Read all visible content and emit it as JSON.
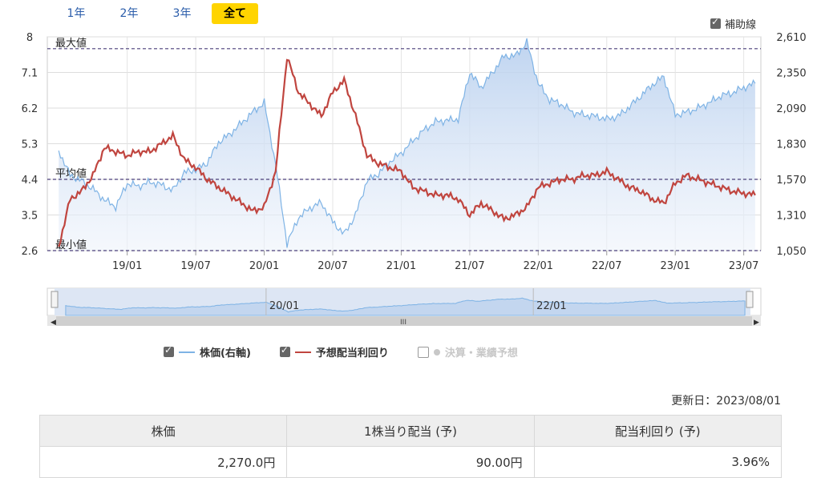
{
  "tabs": [
    {
      "label": "1年",
      "active": false
    },
    {
      "label": "2年",
      "active": false
    },
    {
      "label": "3年",
      "active": false
    },
    {
      "label": "全て",
      "active": true
    }
  ],
  "aux_lines_label": "補助線",
  "chart_data": {
    "type": "line",
    "left_axis": {
      "ticks": [
        "8",
        "7.1",
        "6.2",
        "5.3",
        "4.4",
        "3.5",
        "2.6"
      ],
      "range": [
        2.6,
        8.0
      ]
    },
    "right_axis": {
      "ticks": [
        "2,610",
        "2,350",
        "2,090",
        "1,830",
        "1,570",
        "1,310",
        "1,050"
      ],
      "range": [
        1050,
        2610
      ]
    },
    "x_ticks": [
      "19/01",
      "19/07",
      "20/01",
      "20/07",
      "21/01",
      "21/07",
      "22/01",
      "22/07",
      "23/01",
      "23/07"
    ],
    "reference_lines": [
      {
        "label": "最大値",
        "value": 7.7
      },
      {
        "label": "平均値",
        "value": 4.4
      },
      {
        "label": "最小値",
        "value": 2.6
      }
    ],
    "series": [
      {
        "name": "株価(右軸)",
        "axis": "right",
        "color": "#7eb3e5",
        "x": [
          "18/07",
          "18/08",
          "18/09",
          "18/10",
          "18/11",
          "18/12",
          "19/01",
          "19/02",
          "19/03",
          "19/04",
          "19/05",
          "19/06",
          "19/07",
          "19/08",
          "19/09",
          "19/10",
          "19/11",
          "19/12",
          "20/01",
          "20/02",
          "20/03",
          "20/04",
          "20/05",
          "20/06",
          "20/07",
          "20/08",
          "20/09",
          "20/10",
          "20/11",
          "20/12",
          "21/01",
          "21/02",
          "21/03",
          "21/04",
          "21/05",
          "21/06",
          "21/07",
          "21/08",
          "21/09",
          "21/10",
          "21/11",
          "21/12",
          "22/01",
          "22/02",
          "22/03",
          "22/04",
          "22/05",
          "22/06",
          "22/07",
          "22/08",
          "22/09",
          "22/10",
          "22/11",
          "22/12",
          "23/01",
          "23/02",
          "23/03",
          "23/04",
          "23/05",
          "23/06",
          "23/07",
          "23/08"
        ],
        "values": [
          1780,
          1600,
          1560,
          1500,
          1420,
          1370,
          1540,
          1520,
          1550,
          1530,
          1490,
          1620,
          1640,
          1690,
          1840,
          1900,
          1980,
          2060,
          2130,
          1680,
          1100,
          1290,
          1360,
          1400,
          1260,
          1170,
          1310,
          1560,
          1610,
          1700,
          1760,
          1850,
          1930,
          1990,
          2000,
          2010,
          2350,
          2240,
          2350,
          2470,
          2470,
          2570,
          2270,
          2150,
          2120,
          2060,
          2040,
          2030,
          2010,
          2030,
          2100,
          2180,
          2260,
          2320,
          2040,
          2060,
          2090,
          2130,
          2180,
          2200,
          2240,
          2270
        ]
      },
      {
        "name": "予想配当利回り",
        "axis": "left",
        "color": "#c0453f",
        "x": [
          "18/07",
          "18/08",
          "18/09",
          "18/10",
          "18/11",
          "18/12",
          "19/01",
          "19/02",
          "19/03",
          "19/04",
          "19/05",
          "19/06",
          "19/07",
          "19/08",
          "19/09",
          "19/10",
          "19/11",
          "19/12",
          "20/01",
          "20/02",
          "20/03",
          "20/04",
          "20/05",
          "20/06",
          "20/07",
          "20/08",
          "20/09",
          "20/10",
          "20/11",
          "20/12",
          "21/01",
          "21/02",
          "21/03",
          "21/04",
          "21/05",
          "21/06",
          "21/07",
          "21/08",
          "21/09",
          "21/10",
          "21/11",
          "21/12",
          "22/01",
          "22/02",
          "22/03",
          "22/04",
          "22/05",
          "22/06",
          "22/07",
          "22/08",
          "22/09",
          "22/10",
          "22/11",
          "22/12",
          "23/01",
          "23/02",
          "23/03",
          "23/04",
          "23/05",
          "23/06",
          "23/07",
          "23/08"
        ],
        "values": [
          2.7,
          3.9,
          4.1,
          4.5,
          5.2,
          5.1,
          5.0,
          5.1,
          5.1,
          5.3,
          5.5,
          4.9,
          4.7,
          4.4,
          4.2,
          4.0,
          3.8,
          3.6,
          3.7,
          4.6,
          7.5,
          6.6,
          6.3,
          6.0,
          6.6,
          6.9,
          6.0,
          5.0,
          4.8,
          4.7,
          4.6,
          4.2,
          4.1,
          4.0,
          4.0,
          3.9,
          3.5,
          3.8,
          3.6,
          3.4,
          3.5,
          3.7,
          4.2,
          4.3,
          4.4,
          4.4,
          4.5,
          4.5,
          4.6,
          4.4,
          4.2,
          4.1,
          3.9,
          3.8,
          4.3,
          4.5,
          4.4,
          4.3,
          4.2,
          4.1,
          4.05,
          4.0
        ]
      }
    ],
    "navigator": {
      "labels": [
        "20/01",
        "22/01"
      ],
      "scroll_label": "III"
    }
  },
  "legend": [
    {
      "label": "株価(右軸)",
      "checked": true,
      "color": "#7eb3e5"
    },
    {
      "label": "予想配当利回り",
      "checked": true,
      "color": "#c0453f"
    },
    {
      "label": "決算・業績予想",
      "checked": false,
      "color": "#c8c8c8"
    }
  ],
  "updated": "更新日：2023/08/01",
  "table": {
    "headers": [
      "株価",
      "1株当り配当 (予)",
      "配当利回り (予)"
    ],
    "values": [
      "2,270.0円",
      "90.00円",
      "3.96%"
    ]
  }
}
